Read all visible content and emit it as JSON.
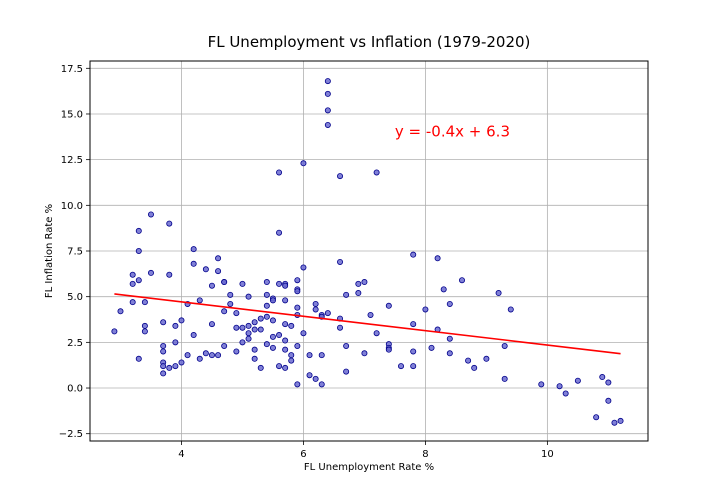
{
  "chart_data": {
    "type": "scatter",
    "title": "FL Unemployment vs Inflation (1979-2020)",
    "xlabel": "FL Unemployment Rate %",
    "ylabel": "FL Inflation Rate %",
    "xlim": [
      2.5,
      11.65
    ],
    "ylim": [
      -2.9,
      17.9
    ],
    "xticks": [
      4,
      6,
      8,
      10
    ],
    "yticks": [
      -2.5,
      0.0,
      2.5,
      5.0,
      7.5,
      10.0,
      12.5,
      15.0,
      17.5
    ],
    "ytick_labels": [
      "−2.5",
      "0.0",
      "2.5",
      "5.0",
      "7.5",
      "10.0",
      "12.5",
      "15.0",
      "17.5"
    ],
    "xtick_labels": [
      "4",
      "6",
      "8",
      "10"
    ],
    "grid": true,
    "point_color": "#00008b",
    "line_color": "#ff0000",
    "annotation": {
      "text": "y = -0.4x + 6.3",
      "color": "#ff0000",
      "x": 7.5,
      "y": 14.1
    },
    "regression": {
      "slope": -0.4,
      "intercept": 6.3,
      "x_start": 2.9,
      "x_end": 11.2,
      "y_start": 5.15,
      "y_end": 1.88
    },
    "points": [
      [
        2.9,
        3.1
      ],
      [
        3.0,
        4.2
      ],
      [
        3.2,
        6.2
      ],
      [
        3.2,
        5.7
      ],
      [
        3.2,
        4.7
      ],
      [
        3.3,
        8.6
      ],
      [
        3.3,
        7.5
      ],
      [
        3.3,
        5.9
      ],
      [
        3.3,
        1.6
      ],
      [
        3.4,
        4.7
      ],
      [
        3.4,
        3.4
      ],
      [
        3.4,
        3.1
      ],
      [
        3.5,
        9.5
      ],
      [
        3.5,
        6.3
      ],
      [
        3.7,
        3.6
      ],
      [
        3.7,
        2.3
      ],
      [
        3.7,
        2.0
      ],
      [
        3.7,
        1.4
      ],
      [
        3.7,
        1.2
      ],
      [
        3.7,
        0.8
      ],
      [
        3.8,
        9.0
      ],
      [
        3.8,
        6.2
      ],
      [
        3.8,
        1.1
      ],
      [
        3.9,
        3.4
      ],
      [
        3.9,
        2.5
      ],
      [
        3.9,
        1.2
      ],
      [
        4.0,
        3.7
      ],
      [
        4.0,
        1.4
      ],
      [
        4.1,
        4.6
      ],
      [
        4.1,
        1.8
      ],
      [
        4.2,
        7.6
      ],
      [
        4.2,
        6.8
      ],
      [
        4.2,
        2.9
      ],
      [
        4.3,
        4.8
      ],
      [
        4.3,
        1.6
      ],
      [
        4.4,
        6.5
      ],
      [
        4.4,
        1.9
      ],
      [
        4.5,
        5.6
      ],
      [
        4.5,
        3.5
      ],
      [
        4.5,
        1.8
      ],
      [
        4.6,
        7.1
      ],
      [
        4.6,
        6.4
      ],
      [
        4.6,
        1.8
      ],
      [
        4.7,
        5.8
      ],
      [
        4.7,
        5.8
      ],
      [
        4.7,
        4.2
      ],
      [
        4.7,
        2.3
      ],
      [
        4.8,
        5.1
      ],
      [
        4.8,
        4.6
      ],
      [
        4.9,
        4.1
      ],
      [
        4.9,
        3.3
      ],
      [
        4.9,
        2.0
      ],
      [
        5.0,
        5.7
      ],
      [
        5.0,
        3.3
      ],
      [
        5.0,
        2.5
      ],
      [
        5.1,
        5.0
      ],
      [
        5.1,
        3.4
      ],
      [
        5.1,
        3.0
      ],
      [
        5.1,
        2.7
      ],
      [
        5.2,
        3.6
      ],
      [
        5.2,
        3.2
      ],
      [
        5.2,
        2.1
      ],
      [
        5.2,
        1.6
      ],
      [
        5.3,
        3.8
      ],
      [
        5.3,
        3.2
      ],
      [
        5.3,
        1.1
      ],
      [
        5.4,
        5.8
      ],
      [
        5.4,
        5.1
      ],
      [
        5.4,
        4.5
      ],
      [
        5.4,
        3.9
      ],
      [
        5.4,
        2.4
      ],
      [
        5.5,
        4.9
      ],
      [
        5.5,
        4.8
      ],
      [
        5.5,
        3.7
      ],
      [
        5.5,
        2.8
      ],
      [
        5.5,
        2.2
      ],
      [
        5.6,
        11.8
      ],
      [
        5.6,
        8.5
      ],
      [
        5.6,
        5.7
      ],
      [
        5.6,
        2.9
      ],
      [
        5.6,
        1.2
      ],
      [
        5.7,
        5.7
      ],
      [
        5.7,
        5.6
      ],
      [
        5.7,
        4.8
      ],
      [
        5.7,
        3.5
      ],
      [
        5.7,
        2.6
      ],
      [
        5.7,
        2.1
      ],
      [
        5.7,
        1.1
      ],
      [
        5.8,
        3.4
      ],
      [
        5.8,
        1.8
      ],
      [
        5.8,
        1.5
      ],
      [
        5.9,
        5.9
      ],
      [
        5.9,
        5.4
      ],
      [
        5.9,
        5.3
      ],
      [
        5.9,
        4.4
      ],
      [
        5.9,
        4.0
      ],
      [
        5.9,
        2.3
      ],
      [
        5.9,
        0.2
      ],
      [
        6.0,
        12.3
      ],
      [
        6.0,
        6.6
      ],
      [
        6.0,
        3.0
      ],
      [
        6.1,
        1.8
      ],
      [
        6.1,
        0.7
      ],
      [
        6.2,
        4.6
      ],
      [
        6.2,
        4.3
      ],
      [
        6.2,
        0.5
      ],
      [
        6.3,
        4.0
      ],
      [
        6.3,
        3.9
      ],
      [
        6.3,
        1.8
      ],
      [
        6.3,
        0.2
      ],
      [
        6.4,
        16.8
      ],
      [
        6.4,
        16.1
      ],
      [
        6.4,
        15.2
      ],
      [
        6.4,
        14.4
      ],
      [
        6.4,
        4.1
      ],
      [
        6.6,
        11.6
      ],
      [
        6.6,
        6.9
      ],
      [
        6.6,
        3.8
      ],
      [
        6.6,
        3.3
      ],
      [
        6.7,
        5.1
      ],
      [
        6.7,
        2.3
      ],
      [
        6.7,
        0.9
      ],
      [
        6.9,
        5.7
      ],
      [
        6.9,
        5.2
      ],
      [
        7.0,
        5.8
      ],
      [
        7.0,
        1.9
      ],
      [
        7.1,
        4.0
      ],
      [
        7.2,
        11.8
      ],
      [
        7.2,
        3.0
      ],
      [
        7.4,
        4.5
      ],
      [
        7.4,
        2.4
      ],
      [
        7.4,
        2.2
      ],
      [
        7.4,
        2.1
      ],
      [
        7.6,
        1.2
      ],
      [
        7.8,
        7.3
      ],
      [
        7.8,
        3.5
      ],
      [
        7.8,
        2.0
      ],
      [
        7.8,
        1.2
      ],
      [
        8.0,
        4.3
      ],
      [
        8.1,
        2.2
      ],
      [
        8.2,
        7.1
      ],
      [
        8.2,
        3.2
      ],
      [
        8.3,
        5.4
      ],
      [
        8.4,
        4.6
      ],
      [
        8.4,
        2.7
      ],
      [
        8.4,
        1.9
      ],
      [
        8.6,
        5.9
      ],
      [
        8.7,
        1.5
      ],
      [
        8.8,
        1.1
      ],
      [
        9.0,
        1.6
      ],
      [
        9.2,
        5.2
      ],
      [
        9.3,
        2.3
      ],
      [
        9.3,
        0.5
      ],
      [
        9.4,
        4.3
      ],
      [
        9.9,
        0.2
      ],
      [
        10.2,
        0.1
      ],
      [
        10.3,
        -0.3
      ],
      [
        10.5,
        0.4
      ],
      [
        10.8,
        -1.6
      ],
      [
        10.9,
        0.6
      ],
      [
        11.0,
        0.3
      ],
      [
        11.0,
        -0.7
      ],
      [
        11.1,
        -1.9
      ],
      [
        11.2,
        -1.8
      ]
    ]
  }
}
